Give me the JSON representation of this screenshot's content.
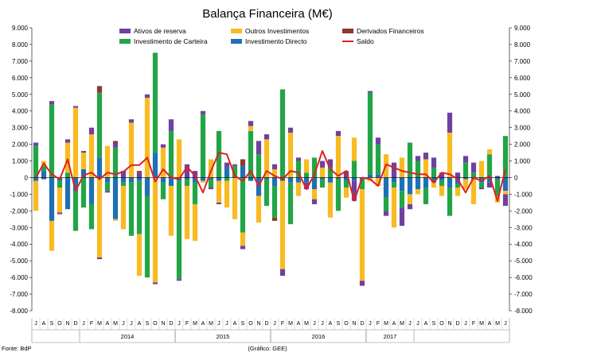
{
  "chart_data": {
    "type": "bar",
    "stacked": true,
    "title": "Balança Financeira (M€)",
    "ylim": [
      -8000,
      9000
    ],
    "yticks": [
      9000,
      8000,
      7000,
      6000,
      5000,
      4000,
      3000,
      2000,
      1000,
      0,
      -1000,
      -2000,
      -3000,
      -4000,
      -5000,
      -6000,
      -7000,
      -8000
    ],
    "ytick_labels_left": [
      "9.000",
      "8.000",
      "7.000",
      "6.000",
      "5.000",
      "4.000",
      "3.000",
      "2.000",
      "1.000",
      "0",
      "-1.000",
      "-2.000",
      "-3.000",
      "-4.000",
      "-5.000",
      "-6.000",
      "-7.000",
      "-8.000"
    ],
    "ytick_labels_right": [
      "9.000",
      "8.000",
      "7.000",
      "6.000",
      "5.000",
      "4.000",
      "3.000",
      "2.000",
      "1.000",
      "0",
      "-1.000",
      "-2.000",
      "-3.000",
      "-4.000",
      "-5.000",
      "-6.000",
      "-7.000",
      "-8.000"
    ],
    "grid": false,
    "legend_position": "top",
    "months": [
      "J",
      "A",
      "S",
      "O",
      "N",
      "D",
      "J",
      "F",
      "M",
      "A",
      "M",
      "J",
      "J",
      "A",
      "S",
      "O",
      "N",
      "D",
      "J",
      "F",
      "M",
      "A",
      "M",
      "J",
      "J",
      "A",
      "S",
      "O",
      "N",
      "D",
      "J",
      "F",
      "M",
      "A",
      "M",
      "J",
      "J",
      "A",
      "S",
      "O",
      "N",
      "D",
      "J",
      "F",
      "M",
      "A",
      "M",
      "J",
      "J",
      "A",
      "S",
      "O",
      "N",
      "D",
      "J",
      "F",
      "M",
      "A",
      "M",
      "J"
    ],
    "years": [
      {
        "label": "2014",
        "start": 6,
        "end": 17
      },
      {
        "label": "2015",
        "start": 18,
        "end": 29
      },
      {
        "label": "2016",
        "start": 30,
        "end": 41
      },
      {
        "label": "2017",
        "start": 42,
        "end": 47
      }
    ],
    "series": [
      {
        "name": "Investimento Directo",
        "color": "#1f6fb5",
        "values": [
          -200,
          400,
          -2600,
          -200,
          -1900,
          -800,
          500,
          -1600,
          1200,
          -300,
          -2500,
          -300,
          -300,
          -200,
          -1100,
          1500,
          -300,
          -500,
          -200,
          -100,
          -300,
          -200,
          -100,
          -200,
          600,
          100,
          700,
          -200,
          -1100,
          -100,
          -500,
          -200,
          -300,
          -300,
          -300,
          -700,
          -100,
          -300,
          -100,
          -200,
          -200,
          -100,
          200,
          200,
          -1200,
          -300,
          -800,
          -1000,
          -700,
          -600,
          -300,
          -200,
          -600,
          -400,
          -100,
          -100,
          -300,
          -300,
          -100,
          -800
        ]
      },
      {
        "name": "Investimento de Carteira",
        "color": "#22a546",
        "values": [
          1900,
          300,
          4400,
          -400,
          300,
          -2400,
          -1800,
          -1500,
          3900,
          -500,
          1800,
          -200,
          -3200,
          -3200,
          -4900,
          6000,
          -1000,
          2800,
          -5900,
          -400,
          -1300,
          3800,
          -500,
          2800,
          -200,
          600,
          -3300,
          2800,
          1400,
          -1600,
          -1900,
          5300,
          -2500,
          1000,
          300,
          1200,
          -500,
          600,
          -1900,
          -400,
          1000,
          -600,
          4900,
          1800,
          -800,
          -300,
          -1000,
          2100,
          1000,
          -1000,
          600,
          -300,
          -1700,
          -200,
          900,
          300,
          -300,
          1400,
          -1000,
          2500
        ]
      },
      {
        "name": "Outros Investimentos",
        "color": "#f8bb22",
        "values": [
          -1800,
          300,
          -1800,
          -1500,
          1800,
          4200,
          1000,
          2600,
          -4800,
          1900,
          -100,
          -2600,
          3300,
          -2500,
          4800,
          -6300,
          1800,
          -3000,
          2300,
          -3200,
          -2200,
          -100,
          1100,
          -1300,
          -1600,
          -2500,
          -800,
          300,
          -1600,
          2300,
          500,
          -5300,
          2700,
          -800,
          800,
          -600,
          600,
          -2100,
          2500,
          -600,
          1400,
          -5500,
          -200,
          -500,
          1400,
          -2400,
          1200,
          -600,
          -300,
          1100,
          -300,
          -600,
          2700,
          -500,
          -600,
          -1500,
          1000,
          300,
          -400,
          -200
        ]
      },
      {
        "name": "Ativos de reserva",
        "color": "#7040a0",
        "values": [
          200,
          -100,
          200,
          -100,
          200,
          100,
          100,
          400,
          -100,
          -100,
          300,
          400,
          200,
          300,
          200,
          -100,
          200,
          700,
          -100,
          800,
          400,
          200,
          -100,
          -100,
          300,
          100,
          -200,
          300,
          800,
          300,
          300,
          -400,
          300,
          200,
          -400,
          -300,
          400,
          500,
          300,
          400,
          -1200,
          -300,
          100,
          400,
          -300,
          900,
          -1100,
          -300,
          300,
          400,
          600,
          300,
          1200,
          300,
          400,
          600,
          -100,
          -300,
          100,
          -700
        ]
      },
      {
        "name": "Derivados Financeiros",
        "color": "#8b3a2f",
        "values": [
          0,
          0,
          0,
          0,
          0,
          0,
          0,
          0,
          400,
          0,
          100,
          0,
          0,
          100,
          0,
          0,
          0,
          0,
          0,
          0,
          0,
          0,
          0,
          0,
          0,
          0,
          400,
          0,
          0,
          0,
          -200,
          0,
          0,
          0,
          0,
          0,
          0,
          0,
          0,
          0,
          0,
          0,
          0,
          0,
          0,
          0,
          0,
          0,
          0,
          0,
          0,
          0,
          0,
          0,
          0,
          0,
          0,
          0,
          0,
          0
        ]
      }
    ],
    "saldo": {
      "name": "Saldo",
      "color": "#e02020",
      "values": [
        0,
        850,
        200,
        -100,
        1100,
        -800,
        150,
        300,
        -100,
        300,
        200,
        350,
        750,
        750,
        1200,
        -250,
        500,
        0,
        -100,
        650,
        100,
        -900,
        400,
        1500,
        1400,
        100,
        -200,
        400,
        -500,
        400,
        100,
        -100,
        400,
        300,
        -700,
        200,
        1600,
        500,
        100,
        400,
        -1400,
        0,
        -100,
        -500,
        800,
        600,
        400,
        300,
        200,
        200,
        -300,
        300,
        200,
        -100,
        -900,
        0,
        -200,
        100,
        -1400,
        500
      ]
    }
  },
  "footer": {
    "source": "Fonte: BdP",
    "credit": "(Gráfico: GEE)"
  }
}
